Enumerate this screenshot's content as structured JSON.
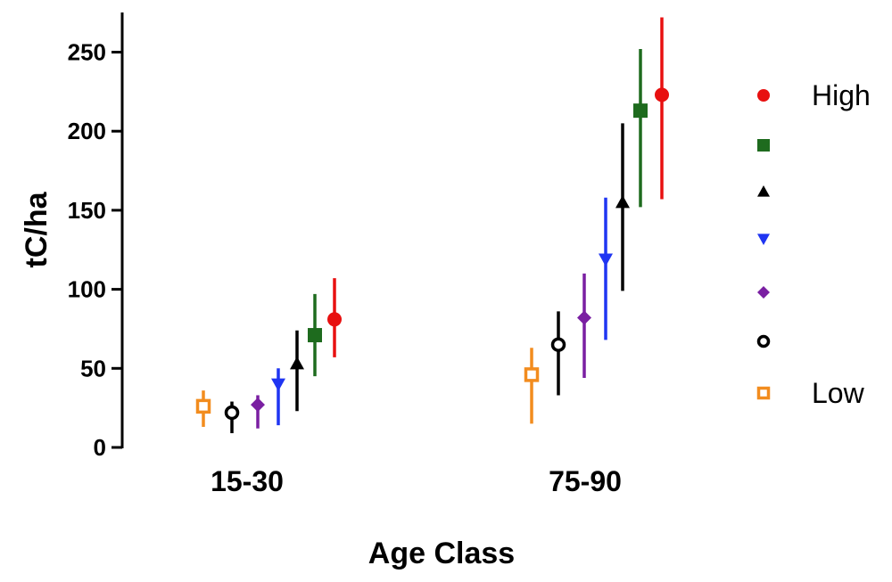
{
  "chart_data": {
    "type": "scatter",
    "xlabel": "Age Class",
    "ylabel": "tC/ha",
    "categories": [
      "15-30",
      "75-90"
    ],
    "ylim": [
      0,
      275
    ],
    "yticks": [
      0,
      50,
      100,
      150,
      200,
      250
    ],
    "grid": false,
    "legend_position": "right",
    "series": [
      {
        "label": "Low",
        "marker": "open-square",
        "color": "#F28C1E",
        "points": [
          {
            "mean": 26,
            "low": 13,
            "high": 36
          },
          {
            "mean": 46,
            "low": 15,
            "high": 63
          }
        ]
      },
      {
        "label": "",
        "marker": "open-circle",
        "color": "#000000",
        "points": [
          {
            "mean": 22,
            "low": 9,
            "high": 29
          },
          {
            "mean": 65,
            "low": 33,
            "high": 86
          }
        ]
      },
      {
        "label": "",
        "marker": "diamond",
        "color": "#7A1FA2",
        "points": [
          {
            "mean": 27,
            "low": 12,
            "high": 33
          },
          {
            "mean": 82,
            "low": 44,
            "high": 110
          }
        ]
      },
      {
        "label": "",
        "marker": "triangle-down",
        "color": "#1F35F2",
        "points": [
          {
            "mean": 40,
            "low": 14,
            "high": 50
          },
          {
            "mean": 119,
            "low": 68,
            "high": 158
          }
        ]
      },
      {
        "label": "",
        "marker": "triangle-up",
        "color": "#000000",
        "points": [
          {
            "mean": 53,
            "low": 23,
            "high": 74
          },
          {
            "mean": 155,
            "low": 99,
            "high": 205
          }
        ]
      },
      {
        "label": "",
        "marker": "square",
        "color": "#1E6B1E",
        "points": [
          {
            "mean": 71,
            "low": 45,
            "high": 97
          },
          {
            "mean": 213,
            "low": 152,
            "high": 252
          }
        ]
      },
      {
        "label": "High",
        "marker": "circle",
        "color": "#E81010",
        "points": [
          {
            "mean": 81,
            "low": 57,
            "high": 107
          },
          {
            "mean": 223,
            "low": 157,
            "high": 272
          }
        ]
      }
    ]
  }
}
